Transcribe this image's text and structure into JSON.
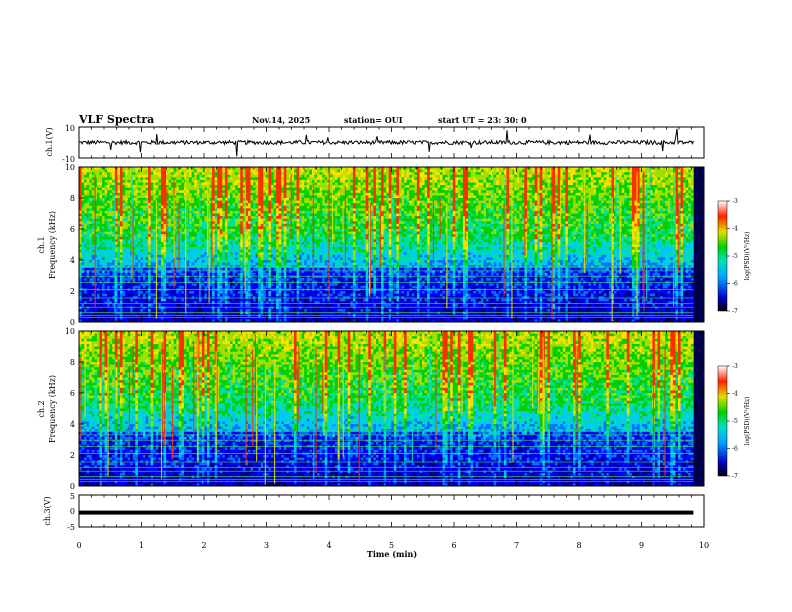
{
  "header": {
    "title": "VLF Spectra",
    "date": "Nov.14, 2025",
    "station": "station= OUI",
    "start": "start  UT =   23: 30: 0"
  },
  "chart_data": [
    {
      "type": "line",
      "name": "ch1-waveform",
      "ylabel": "ch.1(V)",
      "ylim": [
        -10,
        10
      ],
      "yticks": [
        "10",
        "-10"
      ],
      "xlim": [
        0,
        10
      ]
    },
    {
      "type": "heatmap",
      "name": "ch1-spectrogram",
      "ylabel": "ch.1\nFrequency (kHz)",
      "ylabel_top": "ch.1",
      "ylabel_bottom": "Frequency (kHz)",
      "ylim": [
        0,
        10
      ],
      "yticks": [
        "0",
        "2",
        "4",
        "6",
        "8",
        "10"
      ],
      "xlim": [
        0,
        9.8
      ],
      "colorbar": {
        "label": "log(PSD)(V²/Hz)",
        "range": [
          -7,
          -3
        ],
        "ticks": [
          "-3",
          "-4",
          "-5",
          "-6",
          "-7"
        ]
      }
    },
    {
      "type": "heatmap",
      "name": "ch2-spectrogram",
      "ylabel_top": "ch.2",
      "ylabel_bottom": "Frequency (kHz)",
      "ylim": [
        0,
        10
      ],
      "yticks": [
        "0",
        "2",
        "4",
        "6",
        "8",
        "10"
      ],
      "xlim": [
        0,
        9.8
      ],
      "colorbar": {
        "label": "log(PSD)(V²/Hz)",
        "range": [
          -7,
          -3
        ],
        "ticks": [
          "-3",
          "-4",
          "-5",
          "-6",
          "-7"
        ]
      }
    },
    {
      "type": "line",
      "name": "ch3-waveform",
      "ylabel": "ch.3(V)",
      "ylim": [
        -5,
        5
      ],
      "yticks": [
        "5",
        "0",
        "-5"
      ],
      "xlim": [
        0,
        10
      ],
      "constant_value": -0.5
    }
  ],
  "xaxis": {
    "label": "Time (min)",
    "ticks": [
      "0",
      "1",
      "2",
      "3",
      "4",
      "5",
      "6",
      "7",
      "8",
      "9",
      "10"
    ]
  },
  "colors": {
    "low": "#000060",
    "mid": "#00c000",
    "high": "#ff0000"
  }
}
